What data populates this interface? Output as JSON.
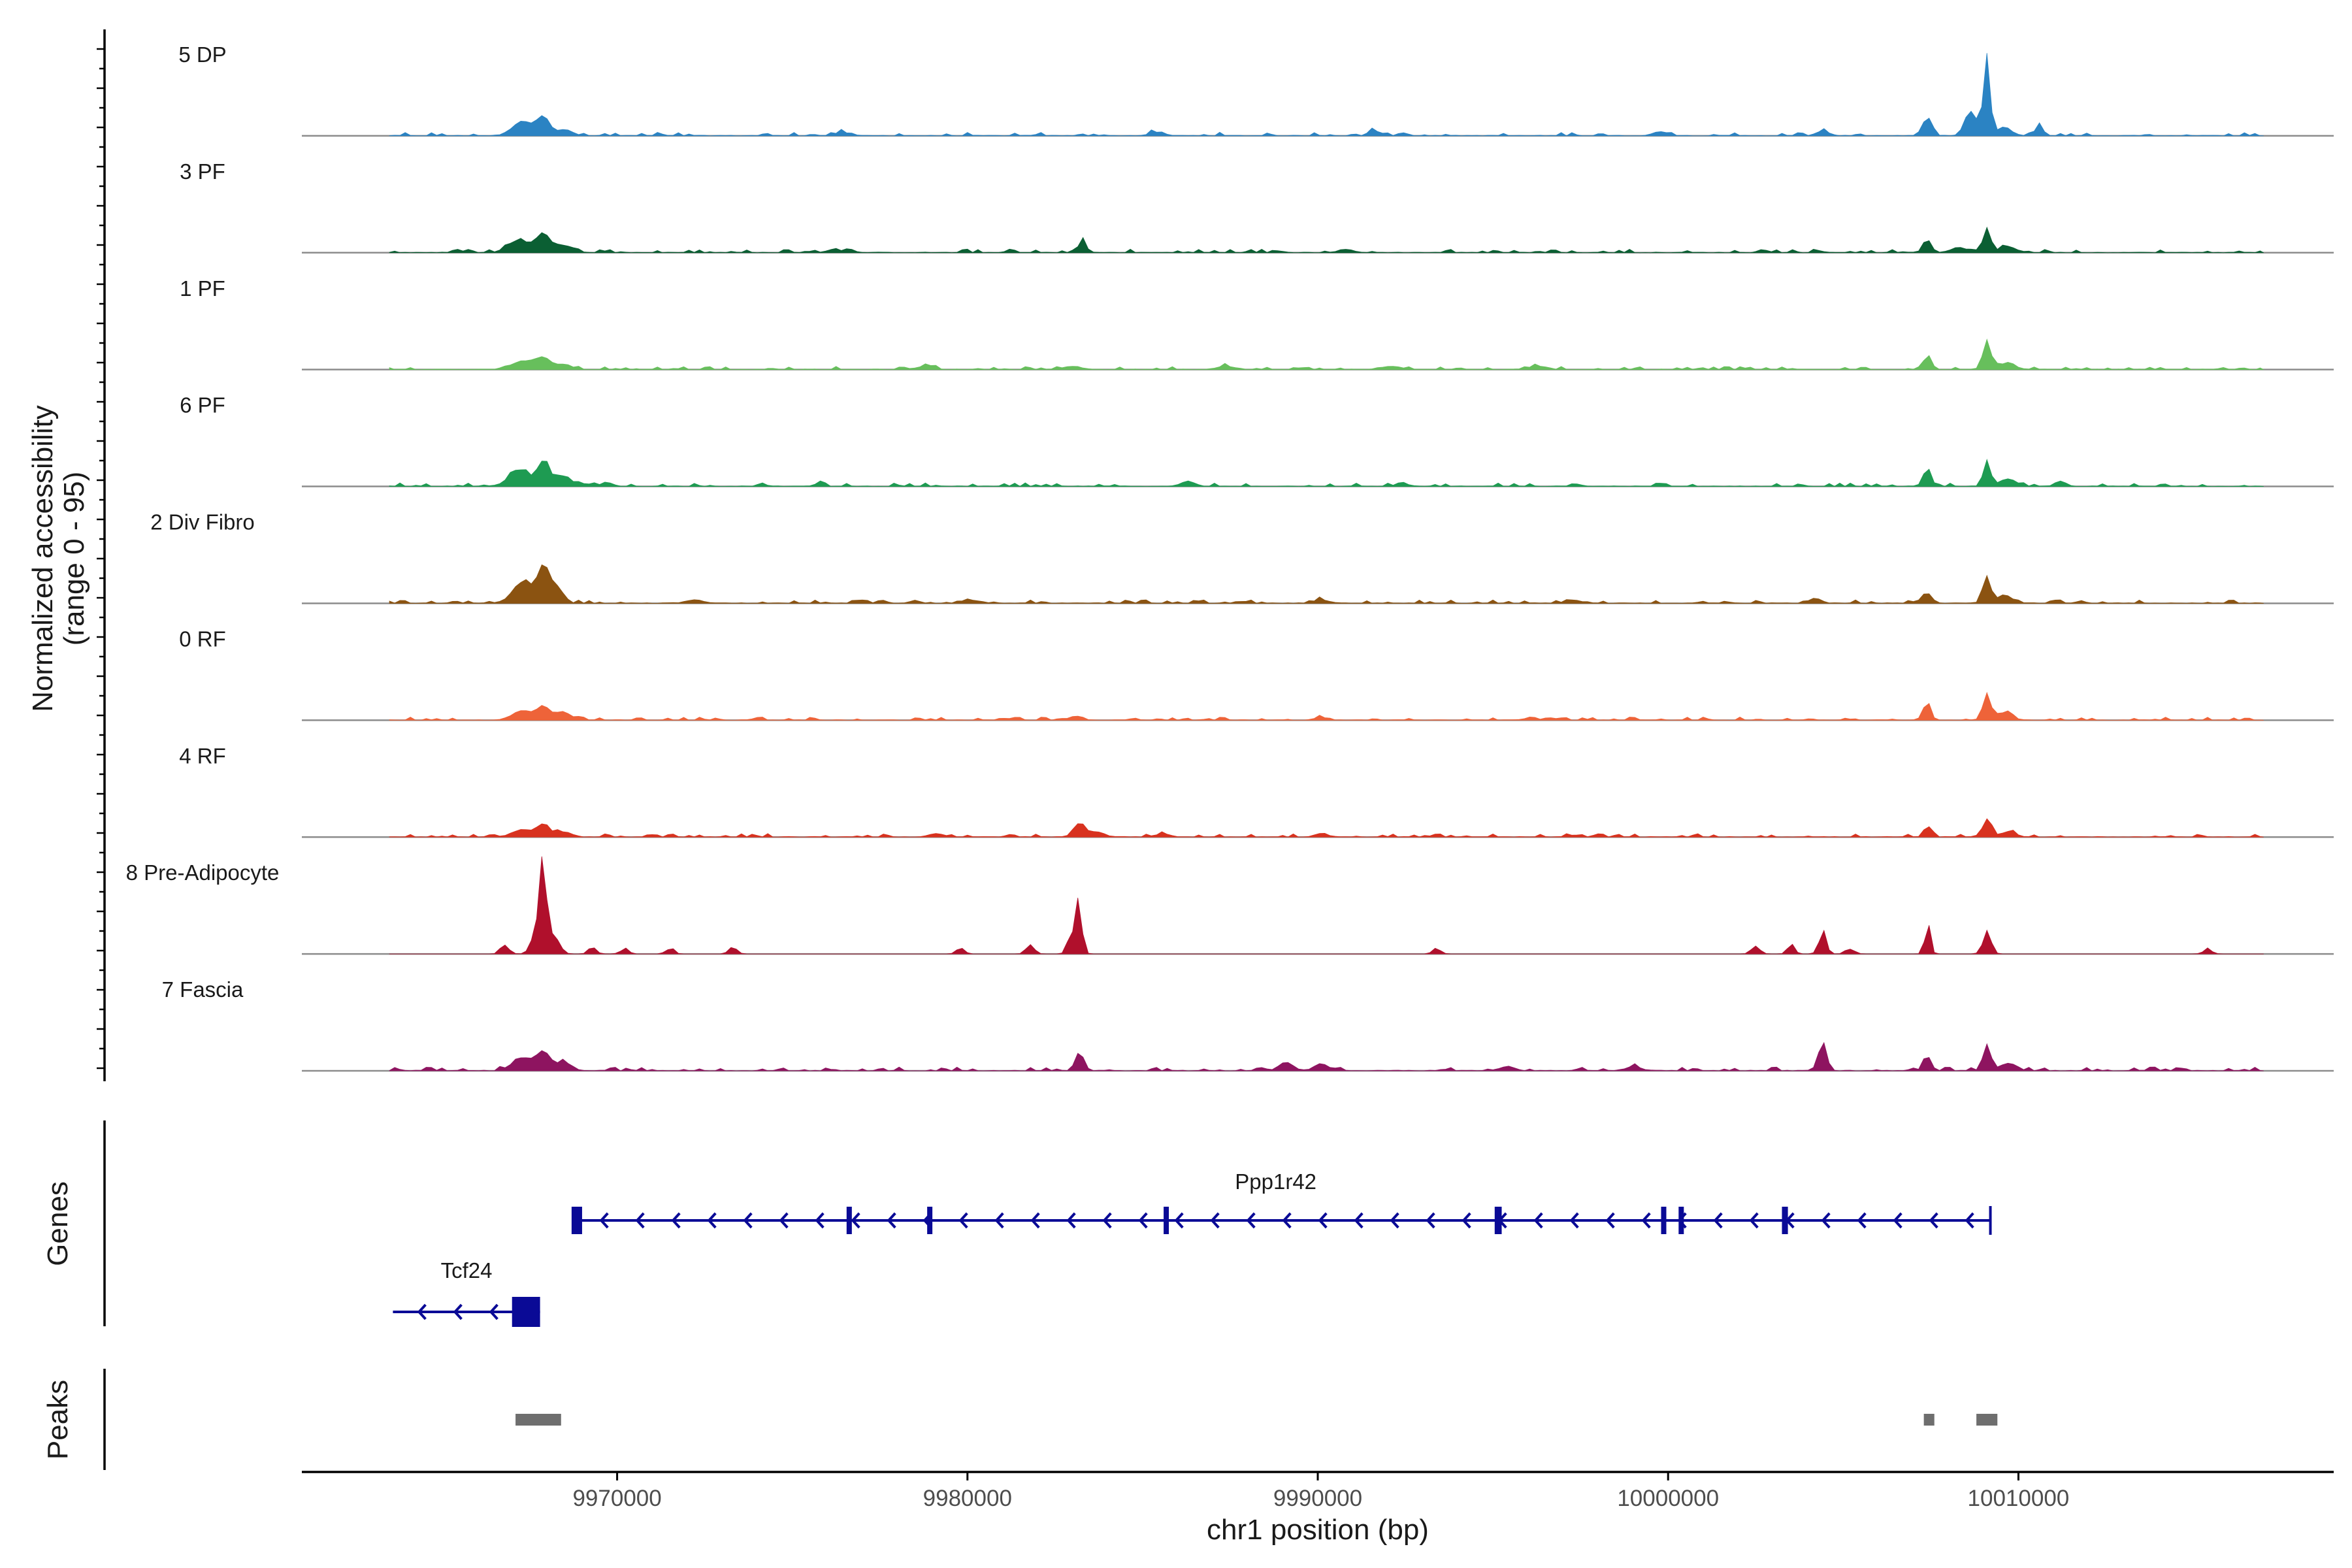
{
  "chart_data": {
    "type": "area",
    "title": "",
    "xlabel": "chr1 position (bp)",
    "ylabel_line1": "Normalized accessibility",
    "ylabel_line2": "(range 0 - 95)",
    "xlim": [
      9961000,
      10019000
    ],
    "ylim": [
      0,
      95
    ],
    "x_ticks": [
      9970000,
      9980000,
      9990000,
      10000000,
      10010000
    ],
    "x_tick_labels": [
      "9970000",
      "9980000",
      "9990000",
      "10000000",
      "10010000"
    ],
    "coverage_start": 9963500,
    "coverage_end": 10017000,
    "bin_size": 150,
    "tracks": [
      {
        "name": "5 DP",
        "color": "#2b83c3",
        "peaks": [
          [
            9967300,
            14,
            280
          ],
          [
            9967900,
            18,
            180
          ],
          [
            9968500,
            6,
            200
          ],
          [
            9991600,
            5,
            150
          ],
          [
            10007400,
            18,
            120
          ],
          [
            10008800,
            10,
            250
          ],
          [
            10009100,
            72,
            90
          ],
          [
            10008600,
            16,
            140
          ],
          [
            10009600,
            8,
            200
          ],
          [
            10010600,
            12,
            100
          ],
          [
            10004400,
            4,
            180
          ],
          [
            9999800,
            4,
            200
          ],
          [
            9976400,
            3,
            200
          ],
          [
            9985400,
            3,
            200
          ]
        ],
        "noise": 2.5
      },
      {
        "name": "3 PF",
        "color": "#0b5f33",
        "peaks": [
          [
            9967200,
            12,
            300
          ],
          [
            9967900,
            18,
            200
          ],
          [
            9968500,
            7,
            220
          ],
          [
            9983300,
            14,
            90
          ],
          [
            10007400,
            12,
            120
          ],
          [
            10009100,
            24,
            110
          ],
          [
            10009700,
            6,
            220
          ],
          [
            10008300,
            5,
            200
          ],
          [
            9976200,
            3,
            200
          ],
          [
            9990800,
            3,
            200
          ]
        ],
        "noise": 2.5
      },
      {
        "name": "1 PF",
        "color": "#67bf5c",
        "peaks": [
          [
            9967300,
            8,
            300
          ],
          [
            9967900,
            11,
            220
          ],
          [
            9968500,
            5,
            200
          ],
          [
            10007400,
            14,
            100
          ],
          [
            10009100,
            26,
            120
          ],
          [
            10009700,
            7,
            200
          ],
          [
            9978800,
            3,
            250
          ],
          [
            9983000,
            3,
            250
          ],
          [
            9987400,
            3,
            250
          ],
          [
            9992100,
            3,
            250
          ],
          [
            9996300,
            3,
            250
          ]
        ],
        "noise": 2.2
      },
      {
        "name": "6 PF",
        "color": "#1e9b52",
        "peaks": [
          [
            9967200,
            16,
            280
          ],
          [
            9967900,
            24,
            180
          ],
          [
            9968500,
            10,
            200
          ],
          [
            9969700,
            4,
            150
          ],
          [
            9975800,
            5,
            100
          ],
          [
            9986300,
            5,
            180
          ],
          [
            9992400,
            4,
            150
          ],
          [
            10007400,
            18,
            110
          ],
          [
            10009100,
            22,
            110
          ],
          [
            10009700,
            7,
            220
          ],
          [
            10011200,
            5,
            150
          ]
        ],
        "noise": 2.5
      },
      {
        "name": "2 Div Fibro",
        "color": "#8b5311",
        "peaks": [
          [
            9967300,
            20,
            280
          ],
          [
            9967900,
            32,
            180
          ],
          [
            9968300,
            14,
            180
          ],
          [
            9990100,
            3,
            200
          ],
          [
            9997300,
            3,
            200
          ],
          [
            10004200,
            5,
            160
          ],
          [
            10007400,
            8,
            140
          ],
          [
            10009100,
            26,
            110
          ],
          [
            10009600,
            8,
            200
          ],
          [
            9972200,
            3,
            250
          ],
          [
            9980100,
            3,
            250
          ]
        ],
        "noise": 2.4
      },
      {
        "name": "0 RF",
        "color": "#ee6339",
        "peaks": [
          [
            9967300,
            9,
            280
          ],
          [
            9967900,
            13,
            180
          ],
          [
            9968500,
            7,
            200
          ],
          [
            9983200,
            4,
            120
          ],
          [
            10007400,
            16,
            100
          ],
          [
            10009100,
            26,
            110
          ],
          [
            10009600,
            7,
            200
          ],
          [
            9990100,
            3,
            150
          ],
          [
            9996100,
            3,
            150
          ]
        ],
        "noise": 2.2
      },
      {
        "name": "4 RF",
        "color": "#d8321f",
        "peaks": [
          [
            9967300,
            7,
            280
          ],
          [
            9967900,
            12,
            180
          ],
          [
            9968500,
            5,
            200
          ],
          [
            9983200,
            13,
            160
          ],
          [
            9983700,
            5,
            200
          ],
          [
            10007400,
            11,
            100
          ],
          [
            10009100,
            17,
            120
          ],
          [
            10009700,
            5,
            200
          ],
          [
            9979100,
            3,
            200
          ],
          [
            9985600,
            3,
            200
          ],
          [
            9990100,
            3,
            200
          ]
        ],
        "noise": 2.4
      },
      {
        "name": "8 Pre-Adipocyte",
        "color": "#b0102c",
        "peaks": [
          [
            9967900,
            68,
            80
          ],
          [
            9967700,
            30,
            140
          ],
          [
            9968200,
            20,
            160
          ],
          [
            9983200,
            40,
            90
          ],
          [
            9983000,
            18,
            130
          ],
          [
            10004400,
            24,
            100
          ],
          [
            10003500,
            10,
            100
          ],
          [
            10007400,
            30,
            80
          ],
          [
            10009100,
            24,
            120
          ],
          [
            9966800,
            10,
            120
          ],
          [
            9969300,
            6,
            120
          ],
          [
            9970200,
            5,
            120
          ],
          [
            9971500,
            6,
            120
          ],
          [
            9973300,
            6,
            120
          ],
          [
            9979800,
            5,
            120
          ],
          [
            9981800,
            8,
            120
          ],
          [
            10002500,
            8,
            120
          ],
          [
            10005200,
            6,
            120
          ],
          [
            10015400,
            5,
            120
          ],
          [
            9993400,
            5,
            120
          ]
        ],
        "noise": 0.0
      },
      {
        "name": "7 Fascia",
        "color": "#8e1460",
        "peaks": [
          [
            9967300,
            12,
            280
          ],
          [
            9967900,
            18,
            200
          ],
          [
            9968500,
            8,
            200
          ],
          [
            9983200,
            18,
            120
          ],
          [
            10004400,
            26,
            110
          ],
          [
            10007400,
            14,
            110
          ],
          [
            10009100,
            23,
            120
          ],
          [
            9989100,
            8,
            200
          ],
          [
            9990100,
            7,
            180
          ],
          [
            10009700,
            6,
            220
          ],
          [
            9995400,
            4,
            200
          ],
          [
            9999000,
            4,
            200
          ]
        ],
        "noise": 2.6
      }
    ],
    "genes": [
      {
        "name": "Ppp1r42",
        "start": 9968800,
        "end": 10009200,
        "strand": "-",
        "label_x": 9988800,
        "exons": [
          [
            9968700,
            9969000
          ],
          [
            9976550,
            9976700
          ],
          [
            9978850,
            9978980
          ],
          [
            9985600,
            9985700
          ],
          [
            9995050,
            9995250
          ],
          [
            9999800,
            9999930
          ],
          [
            10000300,
            10000420
          ],
          [
            10003250,
            10003420
          ]
        ]
      },
      {
        "name": "Tcf24",
        "start": 9963600,
        "end": 9967800,
        "strand": "-",
        "label_x": 9965700,
        "exons": [
          [
            9967000,
            9967800
          ]
        ]
      }
    ],
    "peaks": [
      [
        9967100,
        9968400
      ],
      [
        10007300,
        10007600
      ],
      [
        10008800,
        10009400
      ]
    ],
    "panel_labels": {
      "genes": "Genes",
      "peaks": "Peaks"
    }
  }
}
